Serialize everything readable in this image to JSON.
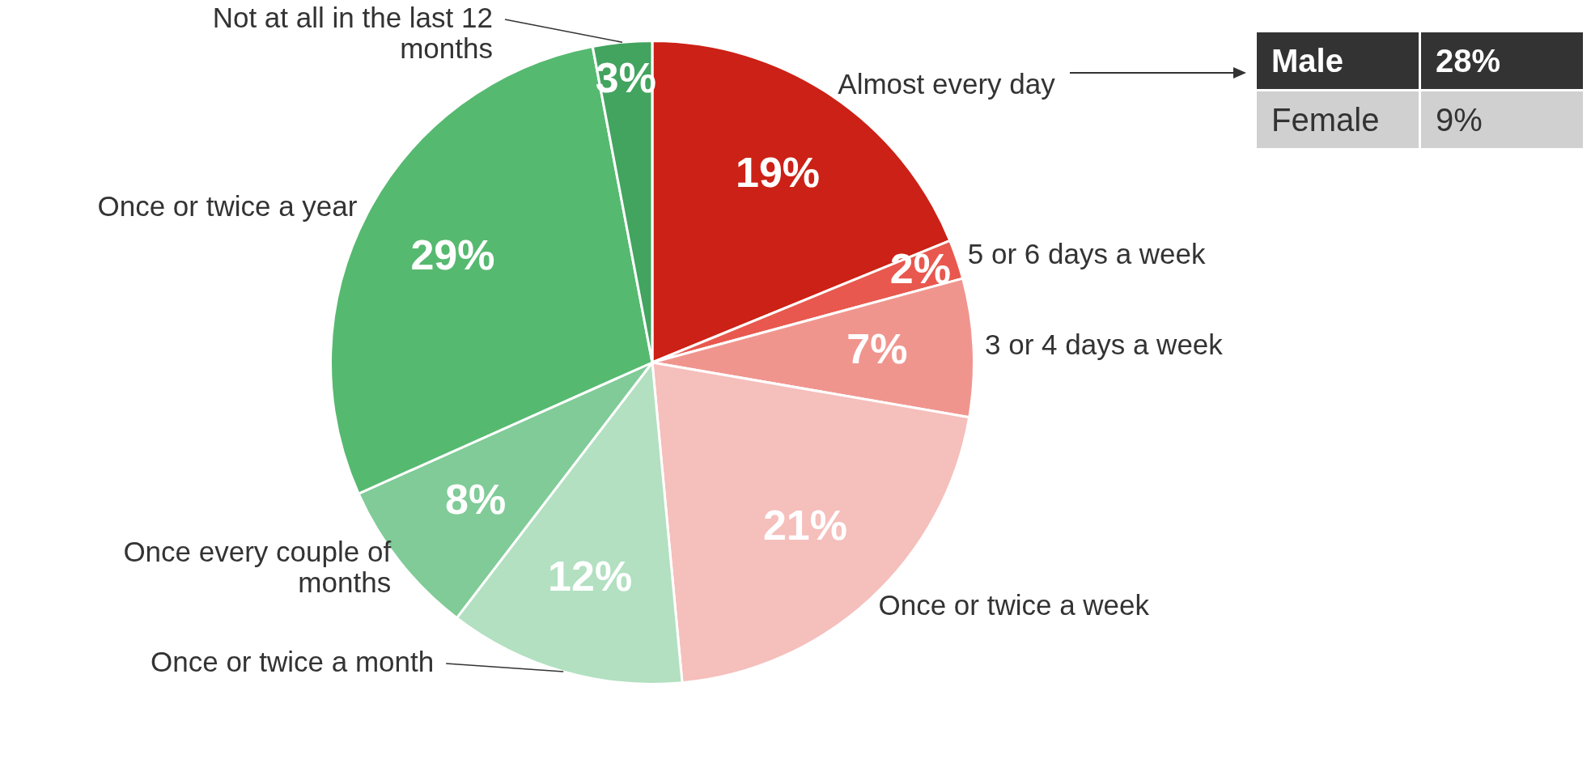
{
  "chart_data": {
    "type": "pie",
    "categories": [
      "Almost every day",
      "5 or 6 days a week",
      "3 or 4 days a week",
      "Once or twice a week",
      "Once or twice a month",
      "Once every couple of months",
      "Once or twice a year",
      "Not at all in the last 12 months"
    ],
    "values": [
      19,
      2,
      7,
      21,
      12,
      8,
      29,
      3
    ],
    "value_labels": [
      "19%",
      "2%",
      "7%",
      "21%",
      "12%",
      "8%",
      "29%",
      "3%"
    ],
    "colors": [
      "#cc2116",
      "#e8584e",
      "#f0958e",
      "#f5bfbc",
      "#b2e0c0",
      "#80cb97",
      "#56b970",
      "#42a45e"
    ],
    "legend": false,
    "annotations": [
      "Male",
      "28%",
      "Female",
      "9%"
    ]
  }
}
